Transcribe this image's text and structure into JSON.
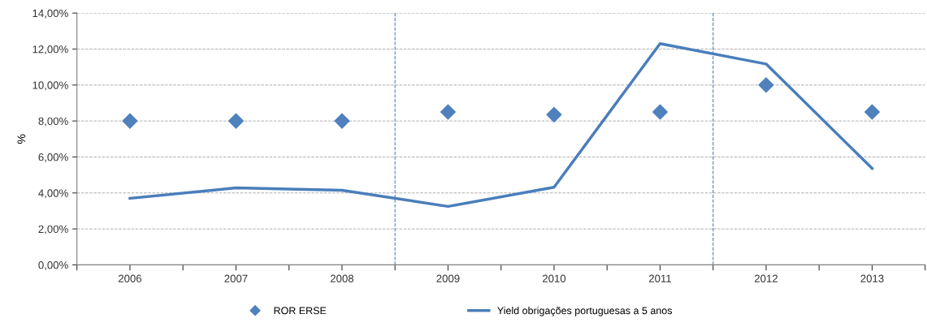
{
  "chart_data": {
    "type": "line",
    "ylabel": "%",
    "x": [
      2006,
      2007,
      2008,
      2009,
      2010,
      2011,
      2012,
      2013
    ],
    "xlim": [
      2005.5,
      2013.5
    ],
    "xticks": [
      {
        "value": 2005.5,
        "label": null
      },
      {
        "value": 2006,
        "label": "2006"
      },
      {
        "value": 2006.5,
        "label": null
      },
      {
        "value": 2007,
        "label": "2007"
      },
      {
        "value": 2007.5,
        "label": null
      },
      {
        "value": 2008,
        "label": "2008"
      },
      {
        "value": 2008.5,
        "label": null
      },
      {
        "value": 2009,
        "label": "2009"
      },
      {
        "value": 2009.5,
        "label": null
      },
      {
        "value": 2010,
        "label": "2010"
      },
      {
        "value": 2010.5,
        "label": null
      },
      {
        "value": 2011,
        "label": "2011"
      },
      {
        "value": 2011.5,
        "label": null
      },
      {
        "value": 2012,
        "label": "2012"
      },
      {
        "value": 2012.5,
        "label": null
      },
      {
        "value": 2013,
        "label": "2013"
      },
      {
        "value": 2013.5,
        "label": null
      }
    ],
    "ylim": [
      0,
      14
    ],
    "yticks": [
      {
        "value": 0,
        "label": "0,00%"
      },
      {
        "value": 2,
        "label": "2,00%"
      },
      {
        "value": 4,
        "label": "4,00%"
      },
      {
        "value": 6,
        "label": "6,00%"
      },
      {
        "value": 8,
        "label": "8,00%"
      },
      {
        "value": 10,
        "label": "10,00%"
      },
      {
        "value": 12,
        "label": "12,00%"
      },
      {
        "value": 14,
        "label": "14,00%"
      }
    ],
    "series": [
      {
        "name": "ROR ERSE",
        "type": "scatter",
        "marker": "diamond",
        "color": "#4f81bd",
        "values": [
          8.0,
          8.0,
          8.0,
          8.5,
          8.35,
          8.5,
          10.0,
          8.5
        ]
      },
      {
        "name": "Yield obrigações portuguesas a 5 anos",
        "type": "line",
        "color": "#4a7ebb",
        "values": [
          3.7,
          4.28,
          4.15,
          3.25,
          4.32,
          12.3,
          11.17,
          5.36
        ]
      }
    ],
    "ref_lines": [
      {
        "axis": "x",
        "value": 2008.5,
        "color": "#4f81bd",
        "line_style": "dashed"
      },
      {
        "axis": "x",
        "value": 2011.5,
        "color": "#4f81bd",
        "line_style": "dashed"
      }
    ],
    "grid": "y",
    "legend": "bottom"
  }
}
